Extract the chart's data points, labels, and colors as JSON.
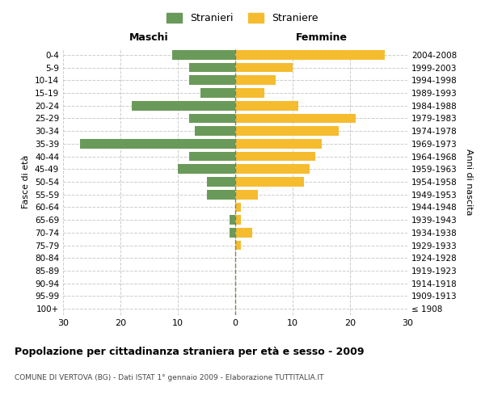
{
  "age_groups": [
    "100+",
    "95-99",
    "90-94",
    "85-89",
    "80-84",
    "75-79",
    "70-74",
    "65-69",
    "60-64",
    "55-59",
    "50-54",
    "45-49",
    "40-44",
    "35-39",
    "30-34",
    "25-29",
    "20-24",
    "15-19",
    "10-14",
    "5-9",
    "0-4"
  ],
  "birth_years": [
    "≤ 1908",
    "1909-1913",
    "1914-1918",
    "1919-1923",
    "1924-1928",
    "1929-1933",
    "1934-1938",
    "1939-1943",
    "1944-1948",
    "1949-1953",
    "1954-1958",
    "1959-1963",
    "1964-1968",
    "1969-1973",
    "1974-1978",
    "1979-1983",
    "1984-1988",
    "1989-1993",
    "1994-1998",
    "1999-2003",
    "2004-2008"
  ],
  "males": [
    0,
    0,
    0,
    0,
    0,
    0,
    1,
    1,
    0,
    5,
    5,
    10,
    8,
    27,
    7,
    8,
    18,
    6,
    8,
    8,
    11
  ],
  "females": [
    0,
    0,
    0,
    0,
    0,
    1,
    3,
    1,
    1,
    4,
    12,
    13,
    14,
    15,
    18,
    21,
    11,
    5,
    7,
    10,
    26
  ],
  "male_color": "#6a9a59",
  "female_color": "#f5bc2f",
  "grid_color": "#cccccc",
  "center_line_color": "#808060",
  "title": "Popolazione per cittadinanza straniera per età e sesso - 2009",
  "subtitle": "COMUNE DI VERTOVA (BG) - Dati ISTAT 1° gennaio 2009 - Elaborazione TUTTITALIA.IT",
  "xlabel_left": "Maschi",
  "xlabel_right": "Femmine",
  "ylabel_left": "Fasce di età",
  "ylabel_right": "Anni di nascita",
  "legend_stranieri": "Stranieri",
  "legend_straniere": "Straniere",
  "xlim": 30,
  "background_color": "#ffffff"
}
